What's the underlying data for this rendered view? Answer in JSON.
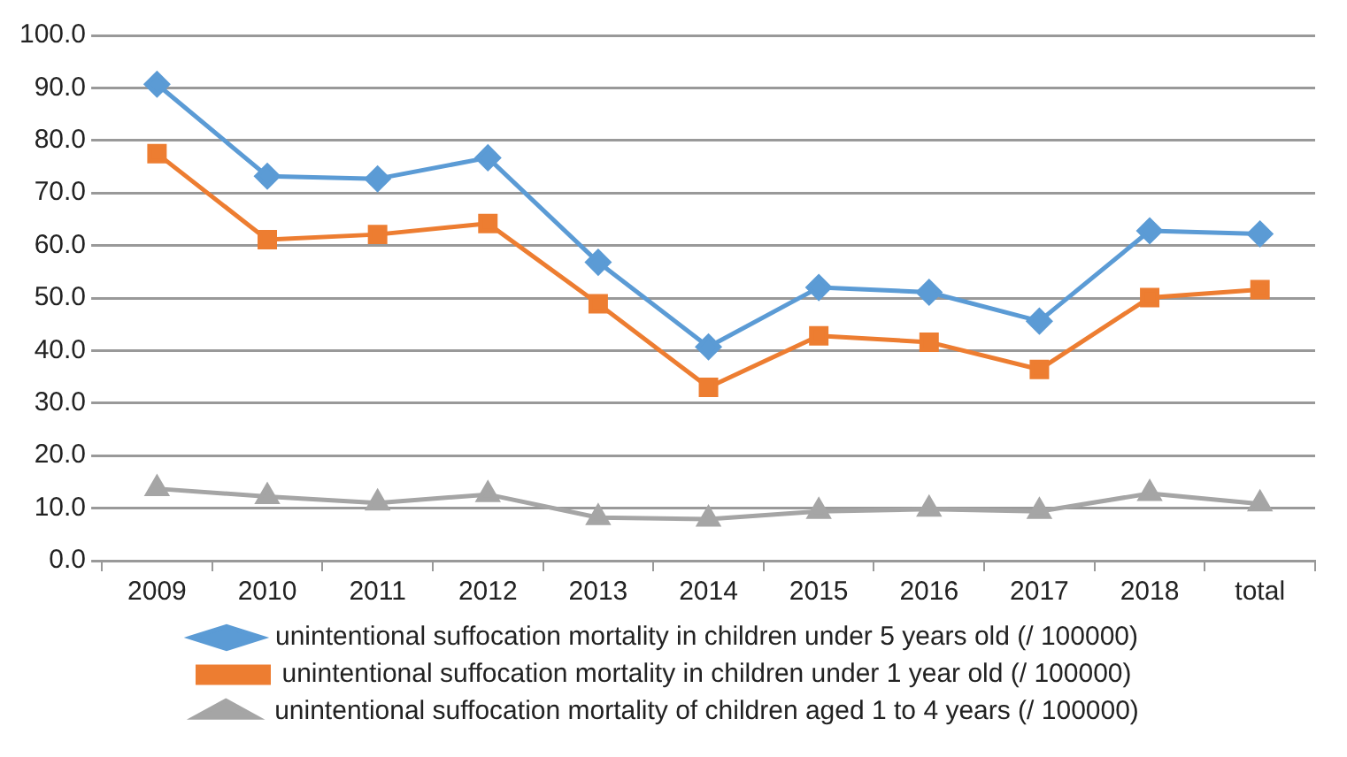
{
  "chart_data": {
    "type": "line",
    "categories": [
      "2009",
      "2010",
      "2011",
      "2012",
      "2013",
      "2014",
      "2015",
      "2016",
      "2017",
      "2018",
      "total"
    ],
    "series": [
      {
        "name": "unintentional suffocation mortality in children under 5 years old (/ 100000)",
        "color": "#5b9bd5",
        "marker": "diamond",
        "values": [
          90.7,
          73.2,
          72.7,
          76.7,
          56.8,
          40.7,
          52.0,
          51.1,
          45.6,
          62.8,
          62.2
        ]
      },
      {
        "name": "unintentional suffocation mortality in children under 1 year old (/ 100000)",
        "color": "#ed7d31",
        "marker": "square",
        "values": [
          77.5,
          61.1,
          62.1,
          64.2,
          48.9,
          33.0,
          42.8,
          41.6,
          36.4,
          50.1,
          51.6
        ]
      },
      {
        "name": "unintentional suffocation mortality of children aged 1 to 4 years (/ 100000)",
        "color": "#a5a5a5",
        "marker": "triangle",
        "values": [
          13.7,
          12.2,
          11.0,
          12.6,
          8.2,
          7.9,
          9.4,
          9.8,
          9.4,
          12.8,
          10.8
        ]
      }
    ],
    "ylim": [
      0,
      100
    ],
    "yticks": [
      {
        "value": 0,
        "label": "0.0"
      },
      {
        "value": 10,
        "label": "10.0"
      },
      {
        "value": 20,
        "label": "20.0"
      },
      {
        "value": 30,
        "label": "30.0"
      },
      {
        "value": 40,
        "label": "40.0"
      },
      {
        "value": 50,
        "label": "50.0"
      },
      {
        "value": 60,
        "label": "60.0"
      },
      {
        "value": 70,
        "label": "70.0"
      },
      {
        "value": 80,
        "label": "80.0"
      },
      {
        "value": 90,
        "label": "90.0"
      },
      {
        "value": 100,
        "label": "100.0"
      }
    ],
    "grid": "y",
    "legend": "bottom",
    "line_style": "solid"
  }
}
